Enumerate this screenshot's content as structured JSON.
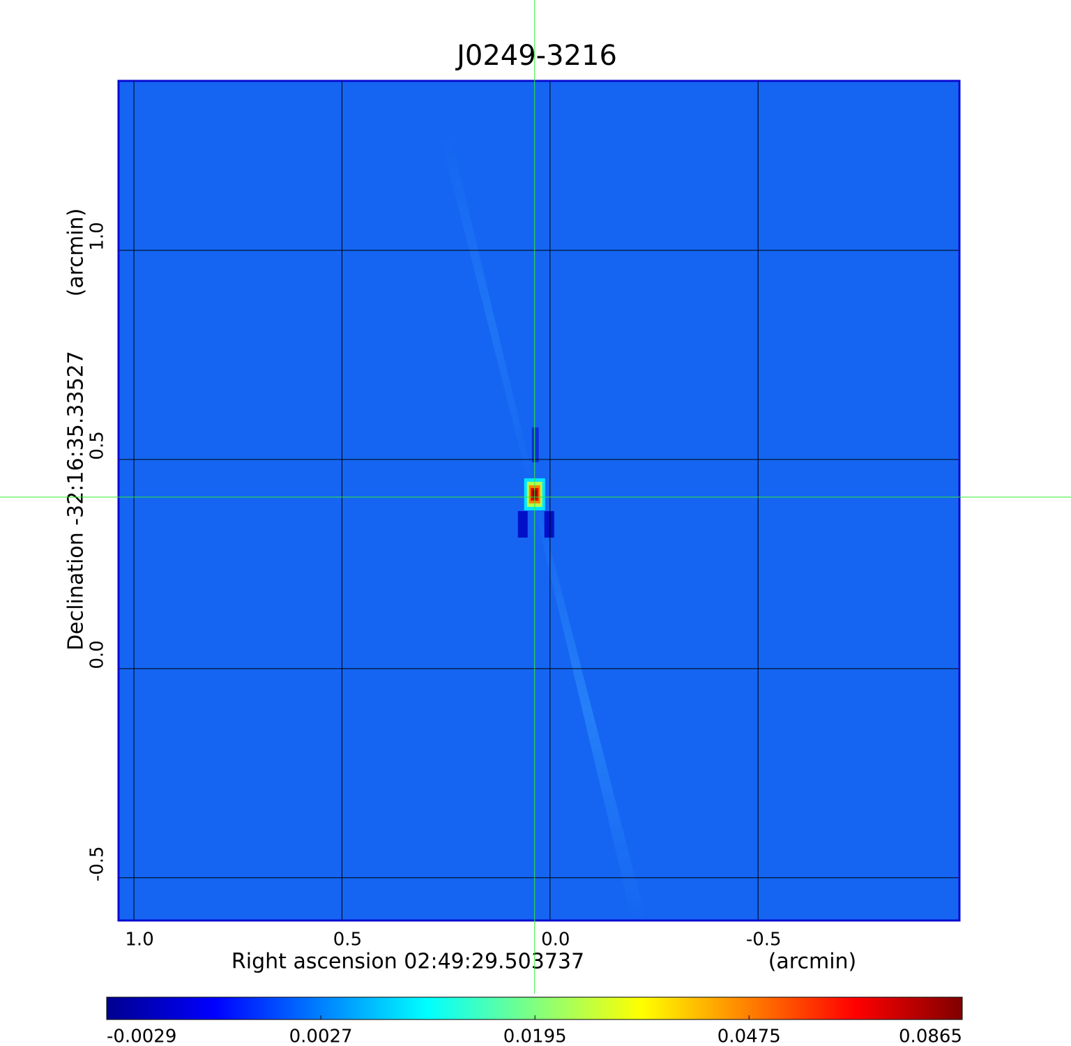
{
  "chart_data": {
    "type": "image",
    "title": "J0249-3216",
    "x_label": "Right ascension  02:49:29.503737",
    "x_unit": "(arcmin)",
    "y_label": "Declination  -32:16:35.33527",
    "y_unit": "(arcmin)",
    "xlim": [
      1.037,
      -0.984
    ],
    "ylim": [
      -0.602,
      1.405
    ],
    "xticks": [
      {
        "value": 1,
        "label": "1.0"
      },
      0.5,
      {
        "value": 0,
        "label": "0.0"
      },
      -0.5
    ],
    "yticks": [
      -0.5,
      {
        "value": 0,
        "label": "0.0"
      },
      0.5,
      {
        "value": 1,
        "label": "1.0"
      }
    ],
    "grid": true,
    "background_color": "#1565f2",
    "frame_color": "#0a0ad0",
    "title_color": "#1a1ad8",
    "peak": {
      "x": 0.037,
      "y": 0.41,
      "value": 0.0865
    },
    "crosshair_color": "#33ee33",
    "colorbar": {
      "scale": "sqrt",
      "lim": [
        -0.0029,
        0.0865
      ],
      "ticks": [
        -0.0029,
        0.0027,
        0.0195,
        0.0475,
        0.0865
      ],
      "colormap": [
        "#00008f",
        "#0000ff",
        "#0080ff",
        "#00ffff",
        "#80ff80",
        "#ffff00",
        "#ff8000",
        "#ff0000",
        "#800000"
      ]
    }
  }
}
